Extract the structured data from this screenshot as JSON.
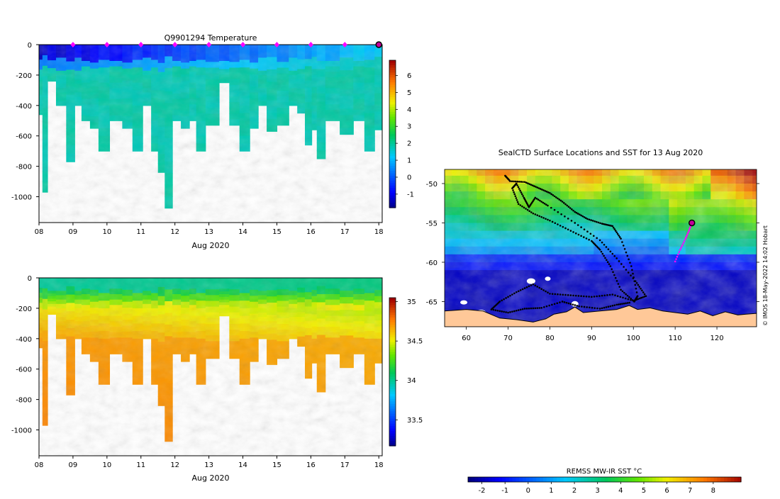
{
  "chart_data": [
    {
      "type": "heatmap",
      "name": "temperature-section",
      "title": "Q9901294  Temperature",
      "xlabel": "Aug 2020",
      "ylabel": "",
      "xlim": [
        8,
        18.1
      ],
      "ylim": [
        -1170,
        0
      ],
      "x_ticks": [
        "08",
        "09",
        "10",
        "11",
        "12",
        "13",
        "14",
        "15",
        "16",
        "17",
        "18"
      ],
      "y_ticks": [
        "0",
        "-200",
        "-400",
        "-600",
        "-800",
        "-1000"
      ],
      "colorbar": {
        "min": -1.8,
        "max": 6.9,
        "ticks": [
          "6",
          "5",
          "4",
          "3",
          "2",
          "1",
          "0",
          "-1"
        ]
      },
      "surface_marker_days": [
        9,
        10,
        11,
        12,
        13,
        14,
        15,
        16,
        17
      ],
      "last_profile_day": 18,
      "profile_max_depths": [
        {
          "day": 8.05,
          "depth": 460
        },
        {
          "day": 8.15,
          "depth": 970
        },
        {
          "day": 8.35,
          "depth": 240
        },
        {
          "day": 8.65,
          "depth": 400
        },
        {
          "day": 8.95,
          "depth": 770
        },
        {
          "day": 9.15,
          "depth": 400
        },
        {
          "day": 9.35,
          "depth": 500
        },
        {
          "day": 9.65,
          "depth": 550
        },
        {
          "day": 9.85,
          "depth": 700
        },
        {
          "day": 10.3,
          "depth": 500
        },
        {
          "day": 10.6,
          "depth": 550
        },
        {
          "day": 10.9,
          "depth": 700
        },
        {
          "day": 11.2,
          "depth": 400
        },
        {
          "day": 11.4,
          "depth": 700
        },
        {
          "day": 11.6,
          "depth": 840
        },
        {
          "day": 11.8,
          "depth": 1075
        },
        {
          "day": 12.05,
          "depth": 500
        },
        {
          "day": 12.3,
          "depth": 550
        },
        {
          "day": 12.55,
          "depth": 500
        },
        {
          "day": 12.7,
          "depth": 700
        },
        {
          "day": 13.1,
          "depth": 530
        },
        {
          "day": 13.5,
          "depth": 250
        },
        {
          "day": 13.7,
          "depth": 530
        },
        {
          "day": 14.1,
          "depth": 700
        },
        {
          "day": 14.3,
          "depth": 550
        },
        {
          "day": 14.6,
          "depth": 400
        },
        {
          "day": 14.8,
          "depth": 570
        },
        {
          "day": 15.2,
          "depth": 530
        },
        {
          "day": 15.5,
          "depth": 400
        },
        {
          "day": 15.7,
          "depth": 450
        },
        {
          "day": 15.95,
          "depth": 660
        },
        {
          "day": 16.1,
          "depth": 560
        },
        {
          "day": 16.25,
          "depth": 750
        },
        {
          "day": 16.6,
          "depth": 500
        },
        {
          "day": 17.1,
          "depth": 590
        },
        {
          "day": 17.4,
          "depth": 500
        },
        {
          "day": 17.75,
          "depth": 700
        },
        {
          "day": 18.0,
          "depth": 560
        }
      ]
    },
    {
      "type": "heatmap",
      "name": "salinity-section",
      "title": "",
      "xlabel": "Aug 2020",
      "ylabel": "",
      "xlim": [
        8,
        18.1
      ],
      "ylim": [
        -1170,
        0
      ],
      "x_ticks": [
        "08",
        "09",
        "10",
        "11",
        "12",
        "13",
        "14",
        "15",
        "16",
        "17",
        "18"
      ],
      "y_ticks": [
        "0",
        "-200",
        "-400",
        "-600",
        "-800",
        "-1000"
      ],
      "colorbar": {
        "min": 33.17,
        "max": 35.05,
        "ticks": [
          "35",
          "34.5",
          "34",
          "33.5"
        ]
      }
    },
    {
      "type": "heatmap",
      "name": "sst-map",
      "title": "SealCTD Surface Locations and SST for 13 Aug 2020",
      "xlabel": "",
      "ylabel": "",
      "xlim": [
        54.8,
        129.5
      ],
      "ylim": [
        -68.2,
        -48.2
      ],
      "x_ticks": [
        "60",
        "70",
        "80",
        "90",
        "100",
        "110",
        "120"
      ],
      "y_ticks": [
        "-50",
        "-55",
        "-60",
        "-65"
      ],
      "colorbar": {
        "label": "REMSS MW-IR SST °C",
        "min": -2.6,
        "max": 9.2,
        "ticks": [
          "-2",
          "-1",
          "0",
          "1",
          "2",
          "3",
          "4",
          "5",
          "6",
          "7",
          "8"
        ]
      },
      "seal_track": [
        [
          69.3,
          -49.0
        ],
        [
          70.5,
          -49.7
        ],
        [
          74,
          -49.8
        ],
        [
          77,
          -50.5
        ],
        [
          80,
          -51.2
        ],
        [
          83,
          -52.3
        ],
        [
          86,
          -53.6
        ],
        [
          89,
          -54.5
        ],
        [
          92.5,
          -55.1
        ],
        [
          95,
          -55.4
        ],
        [
          97,
          -57.0
        ],
        [
          99.5,
          -60.5
        ],
        [
          101,
          -64.3
        ],
        [
          100.2,
          -65.0
        ],
        [
          97,
          -63.5
        ],
        [
          94.5,
          -60.5
        ],
        [
          92,
          -58.4
        ],
        [
          90,
          -57.3
        ],
        [
          85,
          -56.0
        ],
        [
          80,
          -54.7
        ],
        [
          76,
          -53.8
        ],
        [
          72.5,
          -52.6
        ],
        [
          71,
          -50.6
        ],
        [
          72,
          -50.0
        ],
        [
          73.8,
          -51.8
        ],
        [
          75,
          -53.0
        ],
        [
          76.5,
          -51.8
        ],
        [
          79.5,
          -52.8
        ],
        [
          86,
          -55.0
        ],
        [
          92,
          -57.2
        ],
        [
          96,
          -59.5
        ],
        [
          100.5,
          -62.4
        ],
        [
          103,
          -64.3
        ],
        [
          100,
          -64.9
        ],
        [
          95,
          -64.1
        ],
        [
          90,
          -64.4
        ],
        [
          85,
          -64.2
        ],
        [
          80,
          -64.0
        ],
        [
          76,
          -62.8
        ],
        [
          72,
          -63.8
        ],
        [
          68,
          -65.0
        ],
        [
          66,
          -66.0
        ],
        [
          70,
          -66.4
        ],
        [
          74,
          -65.9
        ],
        [
          78,
          -65.8
        ],
        [
          83,
          -65.0
        ],
        [
          87,
          -65.6
        ],
        [
          92,
          -65.9
        ],
        [
          96,
          -65.4
        ],
        [
          99.5,
          -65.1
        ]
      ],
      "recent_track": [
        [
          110,
          -59.9
        ],
        [
          111.2,
          -58.4
        ],
        [
          112.4,
          -57.1
        ],
        [
          113.3,
          -56.0
        ],
        [
          114.0,
          -55.0
        ]
      ],
      "last_position": [
        114.0,
        -55.0
      ]
    }
  ],
  "credit": "© IMOS 18-May-2022 14:02 Hobart",
  "colors": {
    "surface_marker": "#ff00ff",
    "last_marker_fill": "#c8009a",
    "track": "#000000",
    "ice": "#ffffff",
    "land": "#ffc898"
  }
}
